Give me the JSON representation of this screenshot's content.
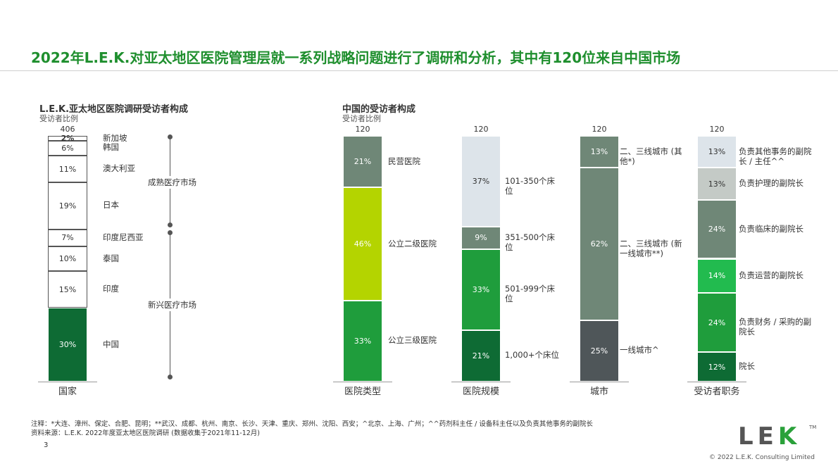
{
  "slide": {
    "title": "2022年L.E.K.对亚太地区医院管理层就一系列战略问题进行了调研和分析，其中有120位来自中国市场",
    "page_number": "3",
    "footnote": "注释：*大连、漳州、保定、合肥、昆明；**武汉、成都、杭州、南京、长沙、天津、重庆、郑州、沈阳、西安；^北京、上海、广州；^^药剂科主任 / 设备科主任以及负责其他事务的副院长",
    "source": "资料来源：L.E.K. 2022年度亚太地区医院调研 (数据收集于2021年11-12月)",
    "logo": {
      "text1": "LE",
      "text2": "K",
      "tm": "TM"
    },
    "copyright": "© 2022 L.E.K. Consulting Limited"
  },
  "left_section": {
    "title": "L.E.K.亚太地区医院调研受访者构成",
    "subtitle": "受访者比例"
  },
  "right_section": {
    "title": "中国的受访者构成",
    "subtitle": "受访者比例"
  },
  "markets": {
    "mature": "成熟医疗市场",
    "emerging": "新兴医疗市场"
  },
  "colors": {
    "title": "#1f8f2e",
    "white": "#ffffff",
    "lime": "#b4d400",
    "green": "#1f9d3c",
    "dark_green": "#0e6b34",
    "gray_green": "#6f8777",
    "pale_blue": "#dde4ea",
    "light_gray": "#c4cac6",
    "bright_green": "#22bb4f",
    "charcoal": "#4f5659"
  },
  "chart_data": {
    "type": "bar",
    "stacked": true,
    "ylabel": "受访者比例",
    "bars": [
      {
        "category": "国家",
        "total": "406",
        "segments": [
          {
            "label": "中国",
            "value": 30,
            "color": "#0e6b34"
          },
          {
            "label": "印度",
            "value": 15,
            "color": "#ffffff"
          },
          {
            "label": "泰国",
            "value": 10,
            "color": "#ffffff"
          },
          {
            "label": "印度尼西亚",
            "value": 7,
            "color": "#ffffff"
          },
          {
            "label": "日本",
            "value": 19,
            "color": "#ffffff"
          },
          {
            "label": "澳大利亚",
            "value": 11,
            "color": "#ffffff"
          },
          {
            "label": "韩国",
            "value": 6,
            "color": "#ffffff"
          },
          {
            "label": "新加坡",
            "value": 2,
            "color": "#ffffff"
          }
        ]
      },
      {
        "category": "医院类型",
        "total": "120",
        "segments": [
          {
            "label": "公立三级医院",
            "value": 33,
            "color": "#1f9d3c"
          },
          {
            "label": "公立二级医院",
            "value": 46,
            "color": "#b4d400"
          },
          {
            "label": "民营医院",
            "value": 21,
            "color": "#6f8777"
          }
        ]
      },
      {
        "category": "医院规模",
        "total": "120",
        "segments": [
          {
            "label": "1,000+个床位",
            "value": 21,
            "color": "#0e6b34"
          },
          {
            "label": "501-999个床位",
            "value": 33,
            "color": "#1f9d3c"
          },
          {
            "label": "351-500个床位",
            "value": 9,
            "color": "#6f8777"
          },
          {
            "label": "101-350个床位",
            "value": 37,
            "color": "#dde4ea"
          }
        ]
      },
      {
        "category": "城市",
        "total": "120",
        "segments": [
          {
            "label": "一线城市^",
            "value": 25,
            "color": "#4f5659"
          },
          {
            "label": "二、三线城市 (新一线城市**)",
            "value": 62,
            "color": "#6f8777"
          },
          {
            "label": "二、三线城市 (其他*)",
            "value": 13,
            "color": "#6f8777"
          }
        ]
      },
      {
        "category": "受访者职务",
        "total": "120",
        "segments": [
          {
            "label": "院长",
            "value": 12,
            "color": "#0e6b34"
          },
          {
            "label": "负责财务 / 采购的副院长",
            "value": 24,
            "color": "#1f9d3c"
          },
          {
            "label": "负责运营的副院长",
            "value": 14,
            "color": "#22bb4f"
          },
          {
            "label": "负责临床的副院长",
            "value": 24,
            "color": "#6f8777"
          },
          {
            "label": "负责护理的副院长",
            "value": 13,
            "color": "#c4cac6"
          },
          {
            "label": "负责其他事务的副院长 / 主任^^",
            "value": 13,
            "color": "#dde4ea"
          }
        ]
      }
    ]
  }
}
